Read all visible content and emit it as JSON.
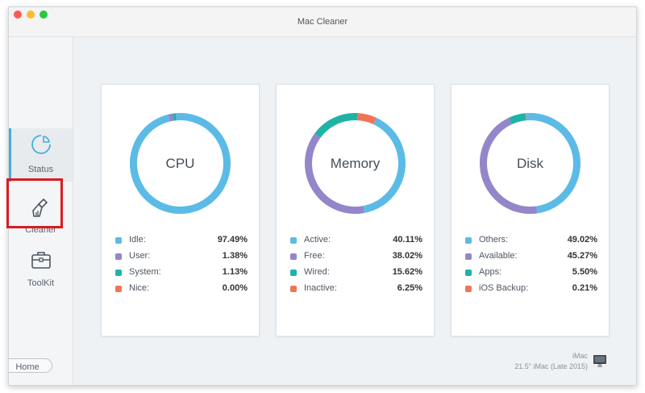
{
  "window": {
    "title": "Mac Cleaner"
  },
  "sidebar": {
    "items": [
      {
        "label": "Status",
        "icon": "status-pie-icon"
      },
      {
        "label": "Cleaner",
        "icon": "broom-icon"
      },
      {
        "label": "ToolKit",
        "icon": "toolbox-icon"
      }
    ],
    "home_label": "Home",
    "accent_color": "#44aedf",
    "highlight_color": "#d91c23"
  },
  "cards": [
    {
      "title": "CPU",
      "stats": [
        {
          "label": "Idle:",
          "value": "97.49%",
          "pct": 97.49,
          "color": "#5bbbe6"
        },
        {
          "label": "User:",
          "value": "1.38%",
          "pct": 1.38,
          "color": "#9486c9"
        },
        {
          "label": "System:",
          "value": "1.13%",
          "pct": 1.13,
          "color": "#1fb3a6"
        },
        {
          "label": "Nice:",
          "value": "0.00%",
          "pct": 0.0,
          "color": "#f07556"
        }
      ]
    },
    {
      "title": "Memory",
      "stats": [
        {
          "label": "Active:",
          "value": "40.11%",
          "pct": 40.11,
          "color": "#5bbbe6"
        },
        {
          "label": "Free:",
          "value": "38.02%",
          "pct": 38.02,
          "color": "#9486c9"
        },
        {
          "label": "Wired:",
          "value": "15.62%",
          "pct": 15.62,
          "color": "#1fb3a6"
        },
        {
          "label": "Inactive:",
          "value": "6.25%",
          "pct": 6.25,
          "color": "#f07556"
        }
      ]
    },
    {
      "title": "Disk",
      "stats": [
        {
          "label": "Others:",
          "value": "49.02%",
          "pct": 49.02,
          "color": "#5bbbe6"
        },
        {
          "label": "Available:",
          "value": "45.27%",
          "pct": 45.27,
          "color": "#9486c9"
        },
        {
          "label": "Apps:",
          "value": "5.50%",
          "pct": 5.5,
          "color": "#1fb3a6"
        },
        {
          "label": "iOS Backup:",
          "value": "0.21%",
          "pct": 0.21,
          "color": "#f07556"
        }
      ]
    }
  ],
  "device": {
    "name": "iMac",
    "model": "21.5\" iMac (Late 2015)",
    "icon": "imac-icon"
  }
}
